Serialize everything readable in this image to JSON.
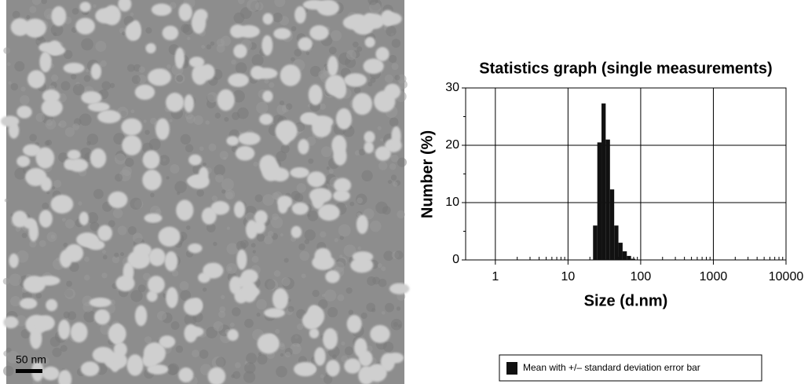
{
  "micrograph": {
    "scale_label": "50 nm"
  },
  "chart_data": {
    "type": "histogram",
    "title": "Statistics graph (single measurements)",
    "x_label": "Size (d.nm)",
    "y_label": "Number (%)",
    "bins": [
      22.1,
      25.3,
      28.9,
      33.0,
      37.8,
      43.2,
      49.4,
      56.4,
      64.5,
      73.7,
      84.3
    ],
    "counts": [
      6,
      20.5,
      27.3,
      21,
      12.3,
      6,
      3,
      1.5,
      0.7,
      0.2
    ],
    "color": "#111111",
    "log_x": true,
    "xlim": [
      0.39,
      10000
    ],
    "xticks": [
      1,
      10,
      100,
      1000,
      10000
    ],
    "ylim": [
      0,
      30
    ],
    "yticks": [
      0,
      10,
      20,
      30
    ],
    "yminor": [
      5,
      15,
      25
    ],
    "grid": true,
    "legend": "Mean with +/– standard deviation error bar"
  }
}
